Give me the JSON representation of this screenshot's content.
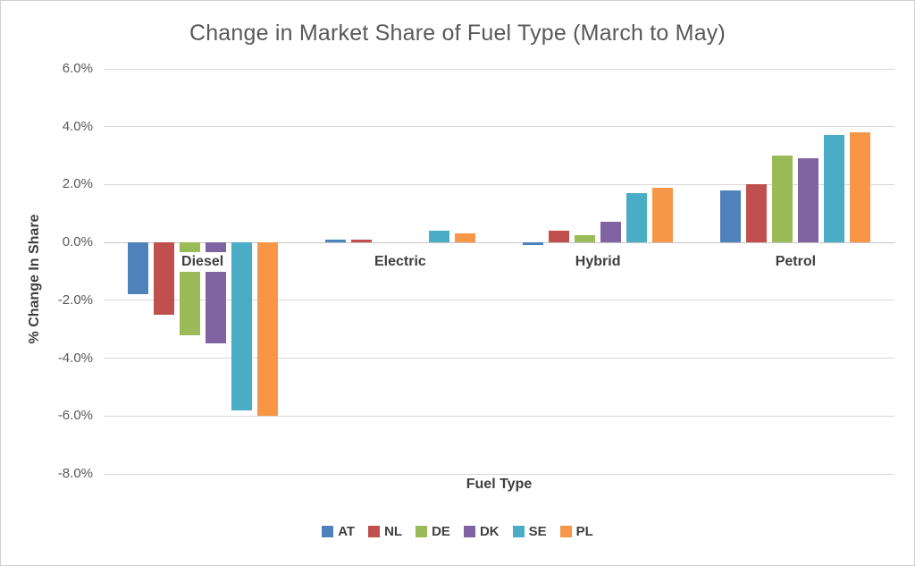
{
  "chart_data": {
    "type": "bar",
    "title": "Change in Market Share of Fuel Type (March to May)",
    "xlabel": "Fuel Type",
    "ylabel": "% Change In Share",
    "categories": [
      "Diesel",
      "Electric",
      "Hybrid",
      "Petrol"
    ],
    "series": [
      {
        "name": "AT",
        "color": "#4F81BD",
        "values": [
          -1.8,
          0.1,
          -0.1,
          1.8
        ]
      },
      {
        "name": "NL",
        "color": "#C0504D",
        "values": [
          -2.5,
          0.1,
          0.4,
          2.0
        ]
      },
      {
        "name": "DE",
        "color": "#9BBB59",
        "values": [
          -3.2,
          0.0,
          0.25,
          3.0
        ]
      },
      {
        "name": "DK",
        "color": "#8064A2",
        "values": [
          -3.5,
          0.0,
          0.7,
          2.9
        ]
      },
      {
        "name": "SE",
        "color": "#4BACC6",
        "values": [
          -5.8,
          0.4,
          1.7,
          3.7
        ]
      },
      {
        "name": "PL",
        "color": "#F79646",
        "values": [
          -6.0,
          0.3,
          1.9,
          3.8
        ]
      }
    ],
    "ylim": [
      -8,
      6
    ],
    "ytick_step": 2,
    "yticks": [
      "6.0%",
      "4.0%",
      "2.0%",
      "0.0%",
      "-2.0%",
      "-4.0%",
      "-6.0%",
      "-8.0%"
    ],
    "grid": true,
    "legend_position": "bottom"
  },
  "colors": {
    "title_text": "#595959",
    "axis_text": "#3f3f3f",
    "tick_text": "#595959",
    "gridline": "#d9d9d9",
    "zero_line": "#c6c6c6",
    "border": "#cfcfcf",
    "background": "#ffffff"
  }
}
